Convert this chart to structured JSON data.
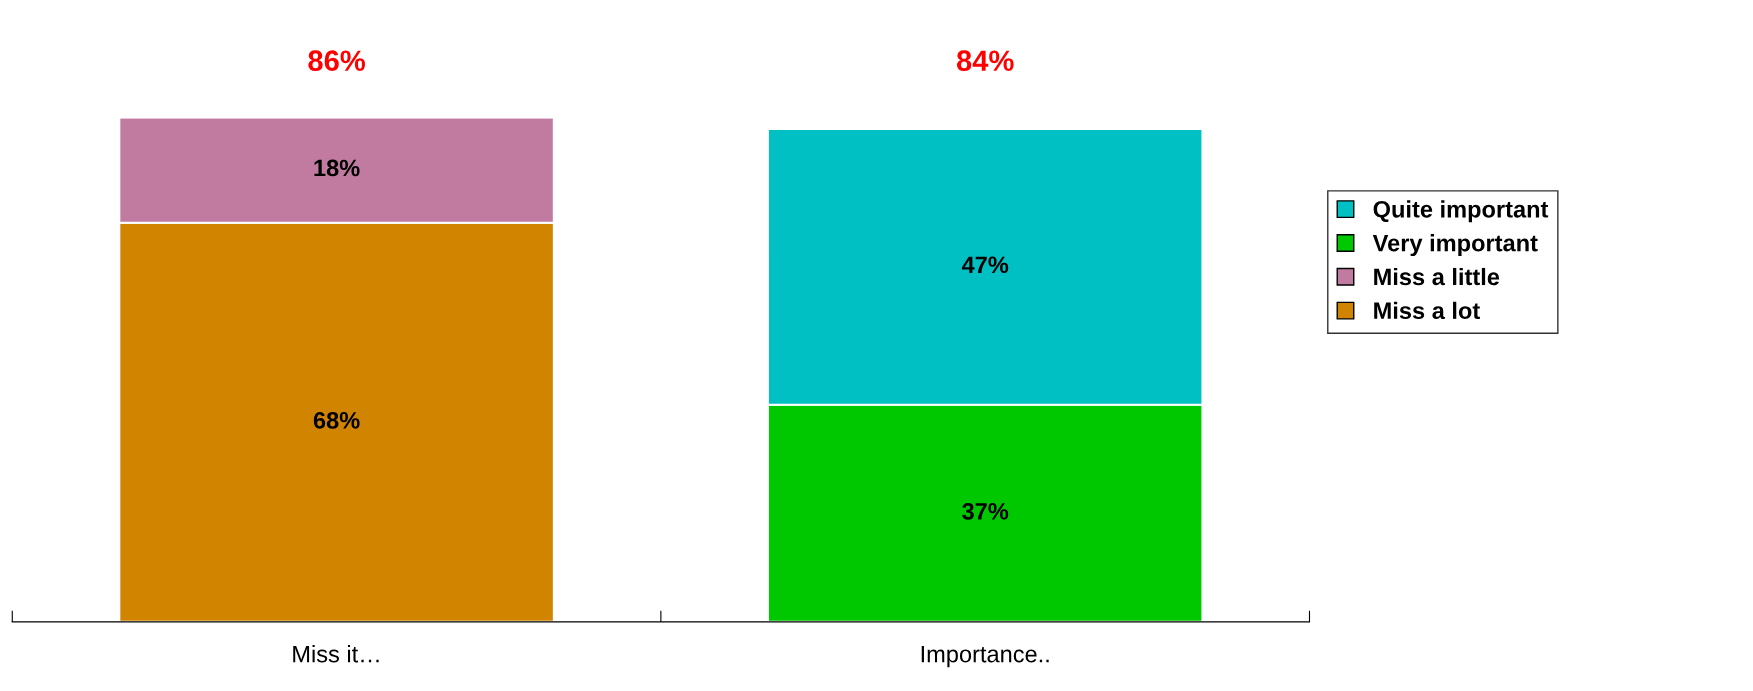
{
  "chart_data": {
    "type": "bar",
    "stacked": true,
    "categories": [
      "Miss it…",
      "Importance.."
    ],
    "series": [
      {
        "name": "Miss a lot",
        "color": "#d08400",
        "values": [
          68,
          null
        ],
        "value_labels": [
          "68%",
          null
        ]
      },
      {
        "name": "Miss a little",
        "color": "#c27ba0",
        "values": [
          18,
          null
        ],
        "value_labels": [
          "18%",
          null
        ]
      },
      {
        "name": "Very important",
        "color": "#00c800",
        "values": [
          null,
          37
        ],
        "value_labels": [
          null,
          "37%"
        ]
      },
      {
        "name": "Quite important",
        "color": "#00c0c4",
        "values": [
          null,
          47
        ],
        "value_labels": [
          null,
          "47%"
        ]
      }
    ],
    "totals": [
      "86%",
      "84%"
    ],
    "legend": "right",
    "grid": false
  }
}
